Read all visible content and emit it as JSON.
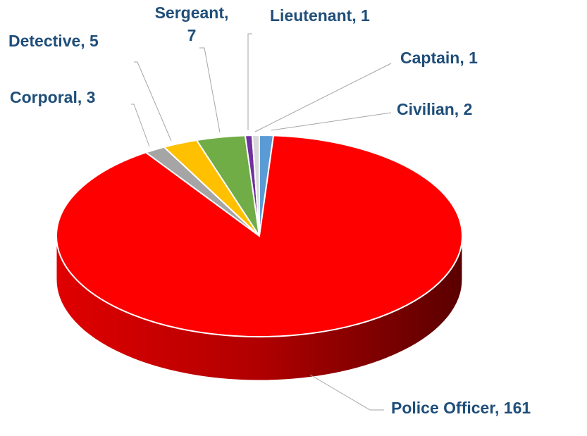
{
  "chart_data": {
    "type": "pie",
    "values": [
      2,
      161,
      3,
      5,
      7,
      1,
      1
    ],
    "value_labels": [
      "Civilian, 2",
      "Police Officer, 161",
      "Corporal, 3",
      "Detective, 5",
      "Sergeant, 7",
      "Lieutenant, 1",
      "Captain, 1"
    ],
    "colors": [
      "#5b9bd5",
      "#ff0000",
      "#a5a5a5",
      "#ffc000",
      "#70ad47",
      "#7030a0",
      "#d9d9d9"
    ]
  }
}
